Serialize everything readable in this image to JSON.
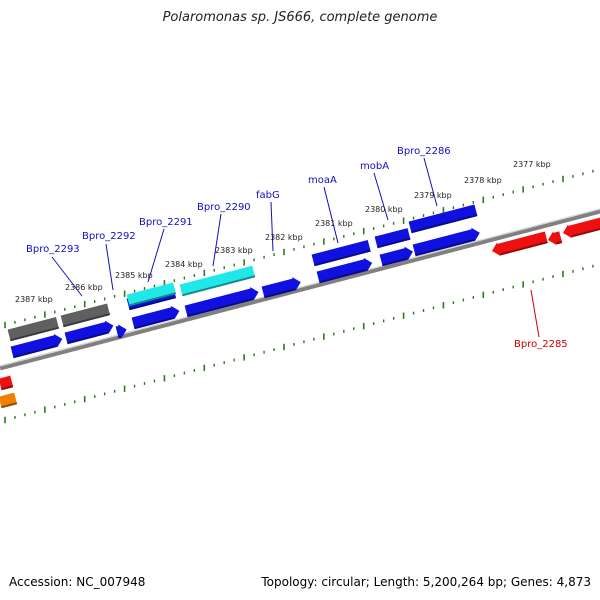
{
  "title": "Polaromonas sp. JS666, complete genome",
  "footer": {
    "accession": "Accession: NC_007948",
    "topology": "Topology: circular; Length: 5,200,264 bp; Genes: 4,873"
  },
  "colors": {
    "blue": "#1010e0",
    "gray": "#606060",
    "cyan": "#20e8e8",
    "red": "#ee1010",
    "orange": "#f08000",
    "tick": "#2a7a1a",
    "backbone": "#808080"
  },
  "ticks": [
    {
      "label": "2387 kbp"
    },
    {
      "label": "2386 kbp"
    },
    {
      "label": "2385 kbp"
    },
    {
      "label": "2384 kbp"
    },
    {
      "label": "2383 kbp"
    },
    {
      "label": "2382 kbp"
    },
    {
      "label": "2381 kbp"
    },
    {
      "label": "2380 kbp"
    },
    {
      "label": "2379 kbp"
    },
    {
      "label": "2378 kbp"
    },
    {
      "label": "2377 kbp"
    }
  ],
  "gene_labels": [
    {
      "name": "Bpro_2293",
      "color": "#1010c0"
    },
    {
      "name": "Bpro_2292",
      "color": "#1010c0"
    },
    {
      "name": "Bpro_2291",
      "color": "#1010c0"
    },
    {
      "name": "Bpro_2290",
      "color": "#1010c0"
    },
    {
      "name": "fabG",
      "color": "#1010c0"
    },
    {
      "name": "moaA",
      "color": "#1010c0"
    },
    {
      "name": "mobA",
      "color": "#1010c0"
    },
    {
      "name": "Bpro_2286",
      "color": "#1010c0"
    },
    {
      "name": "Bpro_2285",
      "color": "#cc0000"
    }
  ]
}
